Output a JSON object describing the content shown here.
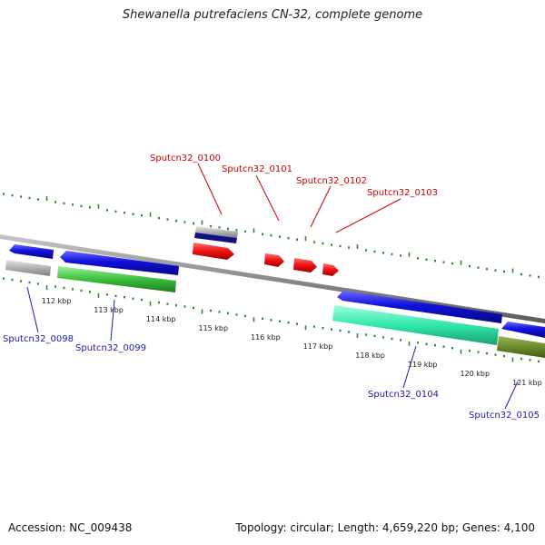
{
  "title": "Shewanella putrefaciens CN-32, complete genome",
  "footer": {
    "accession": "Accession: NC_009438",
    "summary": "Topology: circular; Length: 4,659,220 bp; Genes: 4,100"
  },
  "scale_labels": [
    "112 kbp",
    "113 kbp",
    "114 kbp",
    "115 kbp",
    "116 kbp",
    "117 kbp",
    "118 kbp",
    "119 kbp",
    "120 kbp",
    "121 kbp"
  ],
  "genes_top": [
    "Sputcn32_0100",
    "Sputcn32_0101",
    "Sputcn32_0102",
    "Sputcn32_0103"
  ],
  "genes_bottom": [
    "Sputcn32_0098",
    "Sputcn32_0099",
    "Sputcn32_0104",
    "Sputcn32_0105"
  ],
  "colors": {
    "tick": "#2f8a2f",
    "backbone": "#8a8a8a",
    "cds": "#1010dd",
    "cds_dark": "#101080",
    "trna": "#ee1111",
    "gray_gene": "#b0b0b0",
    "green_gene": "#3cbf3c",
    "cyan_gene": "#30e8a8",
    "olive_gene": "#6b8a2a",
    "label_top": "#cc0000",
    "label_bottom": "#1a1aa8"
  }
}
